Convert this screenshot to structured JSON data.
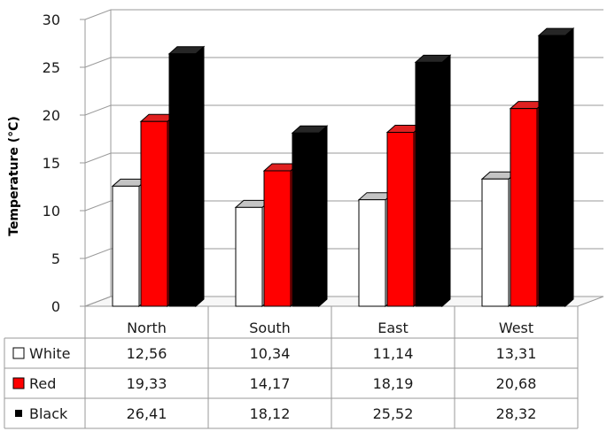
{
  "chart_data": {
    "type": "bar",
    "categories": [
      "North",
      "South",
      "East",
      "West"
    ],
    "ylabel": "Temperature (°C)",
    "xlabel": "",
    "ylim": [
      0,
      30
    ],
    "yticks": [
      "0",
      "5",
      "10",
      "15",
      "20",
      "25",
      "30"
    ],
    "grid": true,
    "legend": "data-table",
    "series": [
      {
        "name": "White",
        "color": "#ffffff",
        "values": [
          12.56,
          10.34,
          11.14,
          13.31
        ],
        "labels": [
          "12,56",
          "10,34",
          "11,14",
          "13,31"
        ]
      },
      {
        "name": "Red",
        "color": "#ff0000",
        "values": [
          19.33,
          14.17,
          18.19,
          20.68
        ],
        "labels": [
          "19,33",
          "14,17",
          "18,19",
          "20,68"
        ]
      },
      {
        "name": "Black",
        "color": "#000000",
        "values": [
          26.41,
          18.12,
          25.52,
          28.32
        ],
        "labels": [
          "26,41",
          "18,12",
          "25,52",
          "28,32"
        ]
      }
    ]
  }
}
